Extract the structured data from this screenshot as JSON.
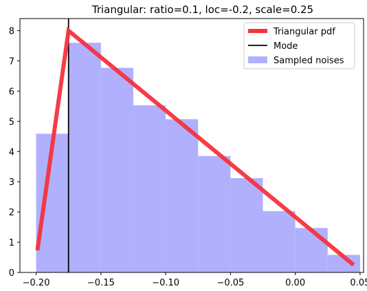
{
  "chart_data": {
    "type": "bar",
    "title": "Triangular: ratio=0.1, loc=-0.2, scale=0.25",
    "xlabel": "",
    "ylabel": "",
    "xlim": [
      -0.2125,
      0.0527
    ],
    "ylim": [
      0,
      8.4
    ],
    "xticks": [
      -0.2,
      -0.15,
      -0.1,
      -0.05,
      0.0,
      0.05
    ],
    "xtick_labels": [
      "−0.20",
      "−0.15",
      "−0.10",
      "−0.05",
      "0.00",
      "0.05"
    ],
    "yticks": [
      0,
      1,
      2,
      3,
      4,
      5,
      6,
      7,
      8
    ],
    "ytick_labels": [
      "0",
      "1",
      "2",
      "3",
      "4",
      "5",
      "6",
      "7",
      "8"
    ],
    "grid": false,
    "legend_position": "top-right",
    "histogram": {
      "name": "Sampled noises",
      "color": "#b0b0fc",
      "bins": [
        {
          "x0": -0.2,
          "x1": -0.175,
          "density": 4.59
        },
        {
          "x0": -0.175,
          "x1": -0.15,
          "density": 7.6
        },
        {
          "x0": -0.15,
          "x1": -0.125,
          "density": 6.77
        },
        {
          "x0": -0.125,
          "x1": -0.1,
          "density": 5.53
        },
        {
          "x0": -0.1,
          "x1": -0.075,
          "density": 5.07
        },
        {
          "x0": -0.075,
          "x1": -0.05,
          "density": 3.85
        },
        {
          "x0": -0.05,
          "x1": -0.025,
          "density": 3.12
        },
        {
          "x0": -0.025,
          "x1": 0.0,
          "density": 2.03
        },
        {
          "x0": 0.0,
          "x1": 0.025,
          "density": 1.47
        },
        {
          "x0": 0.025,
          "x1": 0.05,
          "density": 0.58
        }
      ]
    },
    "pdf_line": {
      "name": "Triangular pdf",
      "color": "#f5333d",
      "x": [
        -0.199,
        -0.175,
        0.045
      ],
      "y": [
        0.73,
        8.0,
        0.25
      ]
    },
    "mode_line": {
      "name": "Mode",
      "color": "#000000",
      "x": -0.175
    },
    "legend": [
      {
        "label": "Triangular pdf",
        "kind": "thick-line",
        "color": "#f5333d"
      },
      {
        "label": "Mode",
        "kind": "line",
        "color": "#000000"
      },
      {
        "label": "Sampled noises",
        "kind": "patch",
        "color": "#b0b0fc"
      }
    ]
  }
}
